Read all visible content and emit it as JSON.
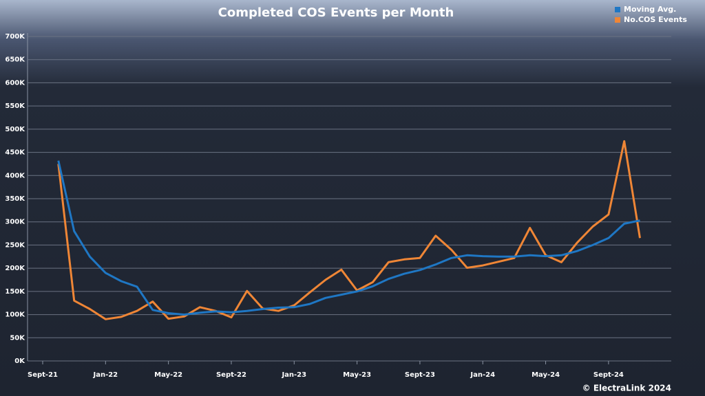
{
  "chart_data": {
    "type": "line",
    "title": "Completed COS Events per Month",
    "footer": "© ElectraLink 2024",
    "legend": "top-right",
    "grid": true,
    "categories": [
      "Sept-21",
      null,
      null,
      null,
      "Jan-22",
      null,
      null,
      null,
      "May-22",
      null,
      null,
      null,
      "Sept-22",
      null,
      null,
      null,
      "Jan-23",
      null,
      null,
      null,
      "May-23",
      null,
      null,
      null,
      "Sept-23",
      null,
      null,
      null,
      "Jan-24",
      null,
      null,
      null,
      "May-24",
      null,
      null,
      null,
      "Sept-24",
      null,
      null
    ],
    "series": [
      {
        "name": "Moving Avg.",
        "color": "#1f77c4",
        "values": [
          null,
          432000,
          280000,
          225000,
          190000,
          172000,
          160000,
          110000,
          103000,
          100000,
          104000,
          107000,
          105000,
          108000,
          112000,
          115000,
          116000,
          123000,
          136000,
          143000,
          150000,
          161000,
          177000,
          188000,
          196000,
          208000,
          222000,
          228000,
          226000,
          225000,
          225000,
          228000,
          226000,
          228000,
          237000,
          250000,
          265000,
          296000,
          303000
        ]
      },
      {
        "name": "No.COS Events",
        "color": "#ef8636",
        "values": [
          null,
          425000,
          130000,
          112000,
          90000,
          95000,
          108000,
          128000,
          91000,
          96000,
          116000,
          108000,
          94000,
          151000,
          113000,
          108000,
          120000,
          148000,
          175000,
          197000,
          152000,
          170000,
          213000,
          219000,
          222000,
          270000,
          240000,
          201000,
          206000,
          214000,
          222000,
          287000,
          228000,
          213000,
          255000,
          290000,
          316000,
          474000,
          265000
        ]
      }
    ],
    "ylim": [
      0,
      700000
    ],
    "yticks": [
      {
        "value": 0,
        "label": "0K"
      },
      {
        "value": 50000,
        "label": "50K"
      },
      {
        "value": 100000,
        "label": "100K"
      },
      {
        "value": 150000,
        "label": "150K"
      },
      {
        "value": 200000,
        "label": "200K"
      },
      {
        "value": 250000,
        "label": "250K"
      },
      {
        "value": 300000,
        "label": "300K"
      },
      {
        "value": 350000,
        "label": "350K"
      },
      {
        "value": 400000,
        "label": "400K"
      },
      {
        "value": 450000,
        "label": "450K"
      },
      {
        "value": 500000,
        "label": "500K"
      },
      {
        "value": 550000,
        "label": "550K"
      },
      {
        "value": 600000,
        "label": "600K"
      },
      {
        "value": 650000,
        "label": "650K"
      },
      {
        "value": 700000,
        "label": "700K"
      }
    ]
  }
}
